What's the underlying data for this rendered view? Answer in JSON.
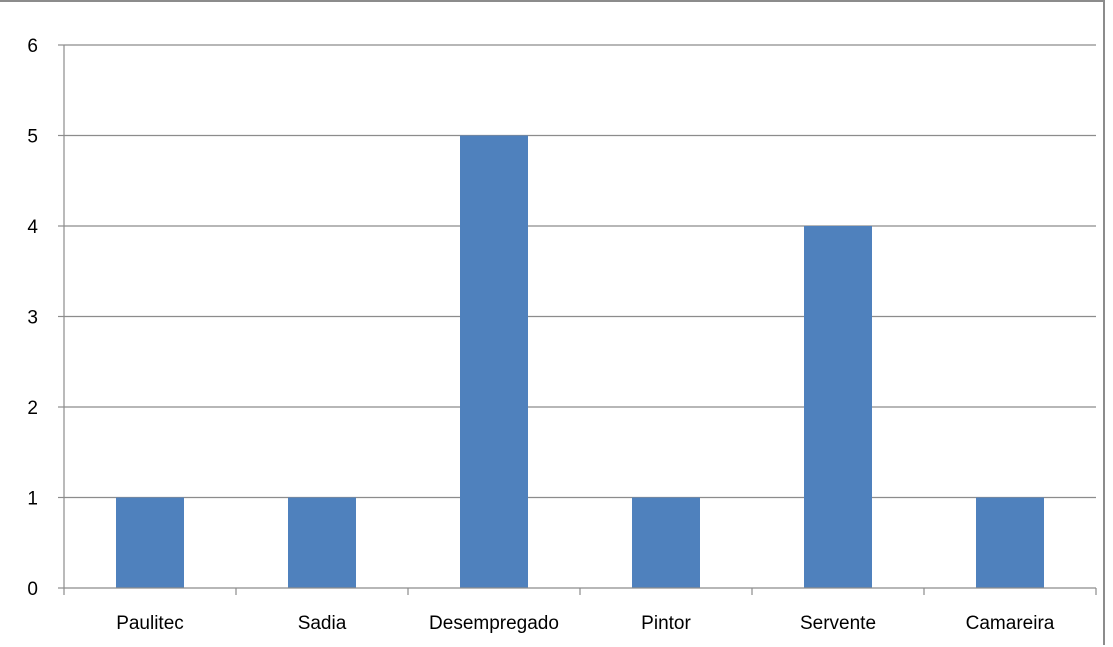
{
  "chart_data": {
    "type": "bar",
    "title": "",
    "xlabel": "",
    "ylabel": "",
    "categories": [
      "Paulitec",
      "Sadia",
      "Desempregado",
      "Pintor",
      "Servente",
      "Camareira"
    ],
    "values": [
      1,
      1,
      5,
      1,
      4,
      1
    ],
    "ylim": [
      0,
      6
    ],
    "yticks": [
      "0",
      "1",
      "2",
      "3",
      "4",
      "5",
      "6"
    ],
    "grid": "horizontal",
    "legend": "none",
    "colors": {
      "bar": "#4f81bd",
      "grid": "#8c8c8c",
      "axis": "#8c8c8c"
    }
  }
}
